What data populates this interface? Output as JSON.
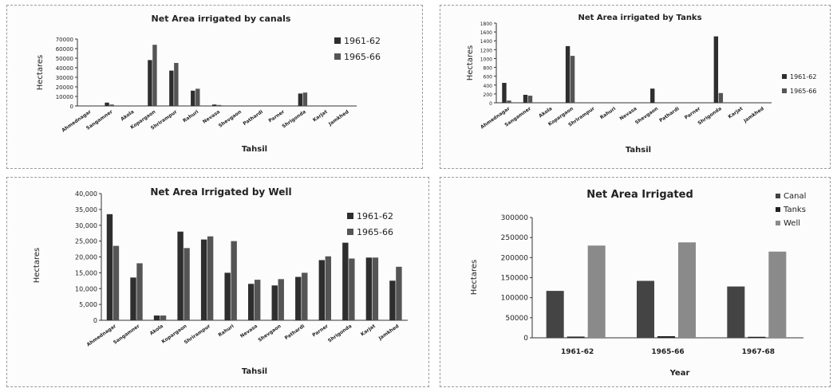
{
  "chart_data": [
    {
      "id": "canals",
      "type": "bar",
      "title": "Net Area irrigated by canals",
      "xlabel": "Tahsil",
      "ylabel": "Hectares",
      "ylim": [
        0,
        70000
      ],
      "yticks": [
        "70000",
        "60000",
        "50000",
        "40000",
        "30000",
        "20000",
        "10000",
        "0"
      ],
      "grid": false,
      "legend_position": "right",
      "categories": [
        "Ahmednagar",
        "Sangamner",
        "Akola",
        "Kopargaon",
        "Shrirampur",
        "Rahuri",
        "Nevasa",
        "Shevgaon",
        "Pathardi",
        "Parner",
        "Shrigonda",
        "Karjat",
        "Jamkhed"
      ],
      "series": [
        {
          "name": "1961-62",
          "color": "#2e2e2e",
          "values": [
            0,
            3500,
            0,
            48000,
            37000,
            16000,
            1500,
            0,
            0,
            0,
            13000,
            0,
            0
          ]
        },
        {
          "name": "1965-66",
          "color": "#555555",
          "values": [
            0,
            1500,
            0,
            64000,
            45000,
            18000,
            1000,
            0,
            0,
            0,
            14000,
            0,
            0
          ]
        }
      ]
    },
    {
      "id": "tanks",
      "type": "bar",
      "title": "Net Area irrigated by Tanks",
      "xlabel": "Tahsil",
      "ylabel": "Hectares",
      "ylim": [
        0,
        1800
      ],
      "yticks": [
        "1800",
        "1600",
        "1400",
        "1200",
        "1000",
        "800",
        "600",
        "400",
        "200",
        "0"
      ],
      "grid": false,
      "legend_position": "right",
      "categories": [
        "Ahmednagar",
        "Sangamner",
        "Akola",
        "Kopargaon",
        "Shrirampur",
        "Rahuri",
        "Nevasa",
        "Shevgaon",
        "Pathardi",
        "Parner",
        "Shrigonda",
        "Karjat",
        "Jamkhed"
      ],
      "series": [
        {
          "name": "1961-62",
          "color": "#2e2e2e",
          "values": [
            450,
            180,
            0,
            1280,
            0,
            0,
            0,
            320,
            0,
            0,
            1500,
            0,
            0
          ]
        },
        {
          "name": "1965-66",
          "color": "#555555",
          "values": [
            50,
            160,
            0,
            1060,
            0,
            0,
            0,
            0,
            0,
            0,
            220,
            0,
            0
          ]
        }
      ]
    },
    {
      "id": "well",
      "type": "bar",
      "title": "Net Area Irrigated by Well",
      "xlabel": "Tahsil",
      "ylabel": "Hectares",
      "ylim": [
        0,
        40000
      ],
      "yticks": [
        "40,000",
        "35,000",
        "30,000",
        "25,000",
        "20,000",
        "15,000",
        "10,000",
        "5,000",
        "0"
      ],
      "grid": false,
      "legend_position": "right",
      "categories": [
        "Ahmednagar",
        "Sangamner",
        "Akola",
        "Kopargaon",
        "Shrirampur",
        "Rahuri",
        "Nevasa",
        "Shevgaon",
        "Pathardi",
        "Parner",
        "Shrigonda",
        "Karjat",
        "Jamkhed"
      ],
      "series": [
        {
          "name": "1961-62",
          "color": "#2e2e2e",
          "values": [
            33500,
            13500,
            1500,
            28000,
            25500,
            15000,
            11500,
            11000,
            13700,
            19000,
            24500,
            19800,
            12500
          ]
        },
        {
          "name": "1965-66",
          "color": "#555555",
          "values": [
            23500,
            18000,
            1500,
            22800,
            26500,
            25000,
            12800,
            13000,
            15000,
            20200,
            19500,
            19800,
            16900
          ]
        }
      ]
    },
    {
      "id": "total",
      "type": "bar",
      "title": "Net Area Irrigated",
      "xlabel": "Year",
      "ylabel": "Hectares",
      "ylim": [
        0,
        300000
      ],
      "yticks": [
        "300000",
        "250000",
        "200000",
        "150000",
        "100000",
        "50000",
        "0"
      ],
      "grid": false,
      "legend_position": "top-right",
      "categories": [
        "1961-62",
        "1965-66",
        "1967-68"
      ],
      "series": [
        {
          "name": "Canal",
          "color": "#444444",
          "values": [
            117000,
            142000,
            128000
          ]
        },
        {
          "name": "Tanks",
          "color": "#222222",
          "values": [
            3000,
            4000,
            2500
          ]
        },
        {
          "name": "Well",
          "color": "#8a8a8a",
          "values": [
            230000,
            238000,
            215000
          ]
        }
      ]
    }
  ]
}
